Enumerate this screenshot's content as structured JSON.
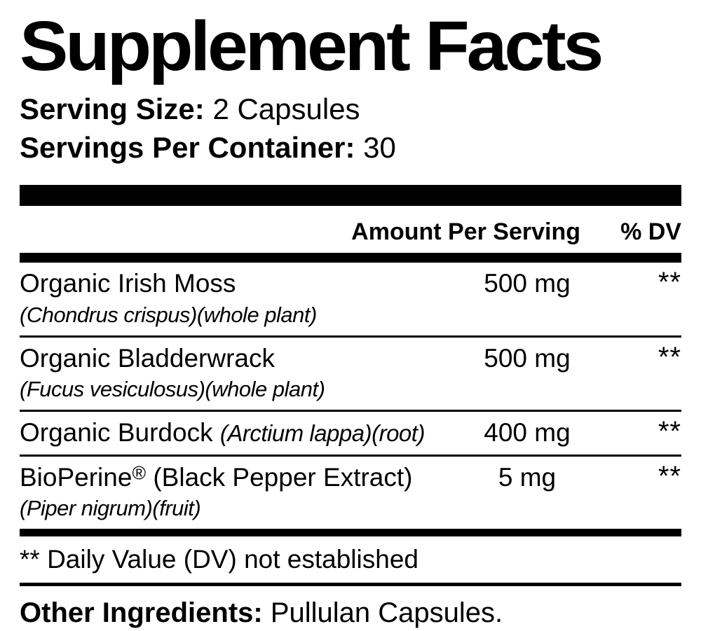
{
  "title": "Supplement Facts",
  "serving": {
    "size_label": "Serving Size:",
    "size_value": "2 Capsules",
    "per_container_label": "Servings Per Container:",
    "per_container_value": "30"
  },
  "table": {
    "header_amount": "Amount Per Serving",
    "header_dv": "% DV",
    "rows": [
      {
        "name": "Organic Irish Moss",
        "latin_below": "(Chondrus crispus)(whole plant)",
        "amount": "500 mg",
        "dv": "**"
      },
      {
        "name": "Organic Bladderwrack",
        "latin_below": "(Fucus vesiculosus)(whole plant)",
        "amount": "500 mg",
        "dv": "**"
      },
      {
        "name": "Organic Burdock",
        "latin_inline": "(Arctium lappa)(root)",
        "amount": "400 mg",
        "dv": "**"
      },
      {
        "name": "BioPerine",
        "reg_mark": "®",
        "name_suffix": "(Black Pepper Extract)",
        "latin_below": "(Piper nigrum)(fruit)",
        "amount": "5 mg",
        "dv": "**"
      }
    ],
    "footnote": "** Daily Value (DV) not established"
  },
  "other_ingredients": {
    "label": "Other Ingredients:",
    "value": "Pullulan Capsules."
  }
}
